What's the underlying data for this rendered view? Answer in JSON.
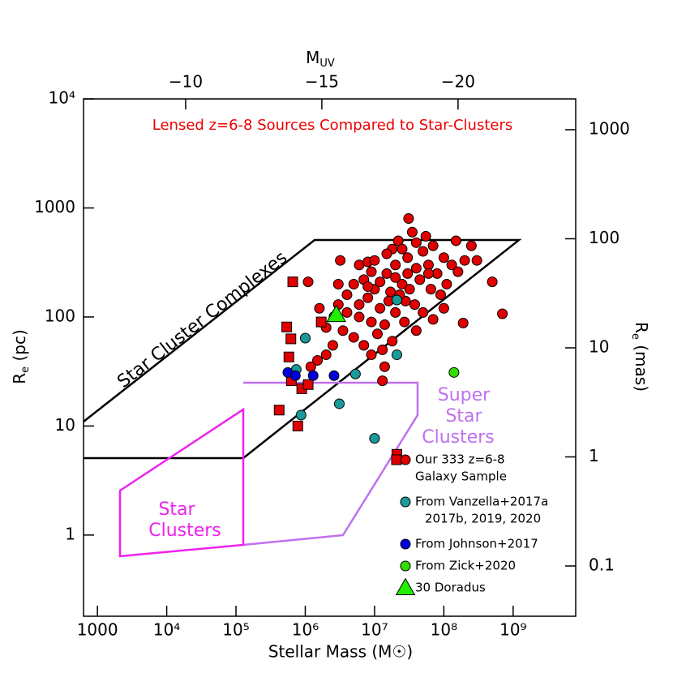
{
  "chart_data": {
    "type": "scatter",
    "xscale": "log",
    "yscale": "log",
    "y2scale": "log",
    "x_label": "Stellar Mass (M☉)",
    "y_label": [
      "R",
      "e",
      " (pc)"
    ],
    "y2_label": [
      "R",
      "e",
      " (mas)"
    ],
    "x2_label": [
      "M",
      "UV"
    ],
    "xlim": [
      630,
      8000000000
    ],
    "xticks": [
      1000,
      {
        "value": 10000,
        "label": "10⁴"
      },
      {
        "value": 100000,
        "label": "10⁵"
      },
      {
        "value": 1000000,
        "label": "10⁶"
      },
      {
        "value": 10000000,
        "label": "10⁷"
      },
      {
        "value": 100000000,
        "label": "10⁸"
      },
      {
        "value": 1000000000,
        "label": "10⁹"
      }
    ],
    "ylim": [
      0.18,
      10000
    ],
    "yticks": [
      1,
      10,
      100,
      1000,
      {
        "value": 10000,
        "label": "10⁴"
      }
    ],
    "x2lim": [
      -6.25,
      -24.32
    ],
    "x2ticks": [
      {
        "value": -10,
        "label": "−10"
      },
      {
        "value": -15,
        "label": "−15"
      },
      {
        "value": -20,
        "label": "−20"
      }
    ],
    "y2lim": [
      0.0346,
      1915
    ],
    "y2ticks": [
      0.1,
      1,
      10,
      100,
      1000
    ],
    "annotations": {
      "heading": "Lensed z=6-8 Sources Compared to Star-Clusters",
      "complexes": "Star Cluster Complexes",
      "super": [
        "Super",
        "Star",
        "Clusters"
      ],
      "clusters": [
        "Star",
        "Clusters"
      ]
    },
    "series": [
      {
        "name": [
          "Our 333 z=6-8",
          "Galaxy Sample"
        ],
        "color": "#e00000",
        "marker": "circle",
        "x": [
          15000000,
          20000000,
          10000000,
          8000000,
          12000000,
          25000000,
          30000000,
          40000000,
          50000000,
          18000000,
          22000000,
          35000000,
          60000000,
          80000000,
          100000000,
          130000000,
          200000000,
          7000000,
          5000000,
          4000000,
          3000000,
          6000000,
          9000000,
          11000000,
          14000000,
          20000000,
          28000000,
          32000000,
          45000000,
          65000000,
          90000000,
          110000000,
          160000000,
          250000000,
          300000000,
          18000000,
          13000000,
          9000000,
          7000000,
          5000000,
          3500000,
          2500000,
          2000000,
          1500000,
          1200000,
          2000000,
          1600000,
          3000000,
          6000000,
          8000000,
          10000000,
          15000000,
          25000000,
          40000000,
          55000000,
          70000000,
          150000000,
          30000000,
          17000000,
          12000000,
          23000000,
          38000000,
          50000000,
          70000000,
          100000000,
          6000000,
          8000000,
          4000000,
          27000000,
          40000000,
          16000000,
          9000000,
          20000000,
          60000000,
          500000000,
          700000000,
          190000000,
          3200000,
          1100000,
          31000000,
          14000000,
          13000000
        ],
        "values": [
          250,
          300,
          180,
          150,
          120,
          200,
          350,
          280,
          400,
          420,
          500,
          600,
          300,
          250,
          350,
          300,
          330,
          220,
          200,
          160,
          130,
          100,
          90,
          70,
          85,
          110,
          140,
          180,
          220,
          180,
          160,
          200,
          260,
          450,
          330,
          60,
          50,
          45,
          55,
          65,
          75,
          55,
          45,
          40,
          35,
          80,
          120,
          200,
          300,
          320,
          330,
          380,
          420,
          480,
          550,
          450,
          500,
          250,
          170,
          210,
          160,
          130,
          110,
          95,
          120,
          130,
          190,
          110,
          90,
          75,
          140,
          260,
          230,
          250,
          210,
          107,
          88,
          330,
          210,
          800,
          35,
          26
        ]
      },
      {
        "color": "#e00000",
        "marker": "square",
        "x": [
          540000,
          660000,
          620000,
          580000,
          420000,
          780000,
          890000,
          1100000,
          630000,
          1700000,
          21000000
        ],
        "values": [
          81,
          210,
          63,
          43,
          14,
          10,
          22,
          24,
          26,
          90,
          5.5
        ]
      },
      {
        "name": [
          "From Vanzella+2017a",
          "2017b, 2019, 2020"
        ],
        "color": "#1a9a9a",
        "marker": "circle",
        "x": [
          1000000,
          870000,
          3100000,
          5300000,
          10000000,
          21000000,
          21000000,
          2600000,
          740000
        ],
        "values": [
          64,
          12.6,
          16,
          30,
          7.7,
          45,
          143,
          101,
          33
        ]
      },
      {
        "name": [
          "From Johnson+2017"
        ],
        "color": "#0000dd",
        "marker": "circle",
        "x": [
          560000,
          720000,
          1300000,
          2600000
        ],
        "values": [
          31,
          29,
          29,
          29
        ]
      },
      {
        "name": [
          "From Zick+2020"
        ],
        "color": "#33dd00",
        "marker": "circle",
        "x": [
          140000000
        ],
        "values": [
          31
        ]
      },
      {
        "name": [
          "30 Doradus"
        ],
        "color": "#22ee00",
        "marker": "triangle",
        "x": [
          2800000
        ],
        "values": [
          105
        ]
      }
    ]
  }
}
